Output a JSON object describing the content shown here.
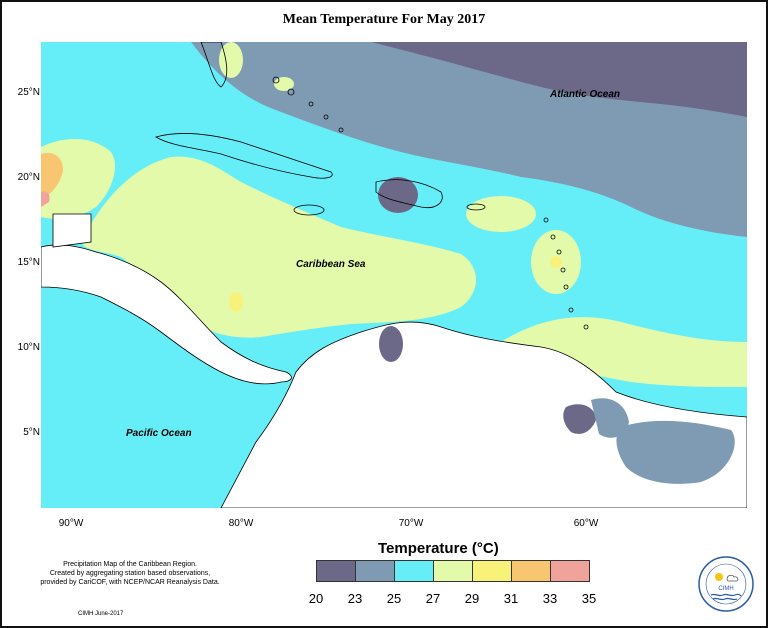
{
  "title": "Mean Temperature For May 2017",
  "regions": {
    "atlantic": "Atlantic Ocean",
    "caribbean": "Caribbean Sea",
    "pacific": "Pacific Ocean"
  },
  "latitude_labels": [
    "25°N",
    "20°N",
    "15°N",
    "10°N",
    "5°N"
  ],
  "longitude_labels": [
    "90°W",
    "80°W",
    "70°W",
    "60°W"
  ],
  "legend": {
    "title": "Temperature (°C)",
    "ticks": [
      "20",
      "23",
      "25",
      "27",
      "29",
      "31",
      "33",
      "35"
    ],
    "colors": [
      "#6b6888",
      "#7f9bb4",
      "#66eef8",
      "#e2faaa",
      "#f8f27a",
      "#f8c670",
      "#f0a39a"
    ]
  },
  "footnote": {
    "line1": "Precipitation Map of the Caribbean Region.",
    "line2": "Created by aggregating station based observations,",
    "line3": "provided by CariCOF, with NCEP/NCAR Reanalysis Data.",
    "credit": "CIMH June-2017"
  },
  "logo_text": "CIMH"
}
